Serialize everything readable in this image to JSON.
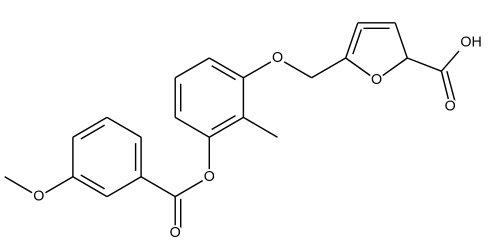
{
  "atoms": [
    {
      "label": "O"
    },
    {
      "label": "O"
    },
    {
      "label": "O"
    },
    {
      "label": "O"
    },
    {
      "label": "O"
    },
    {
      "label": "O"
    },
    {
      "label": "OH"
    }
  ]
}
